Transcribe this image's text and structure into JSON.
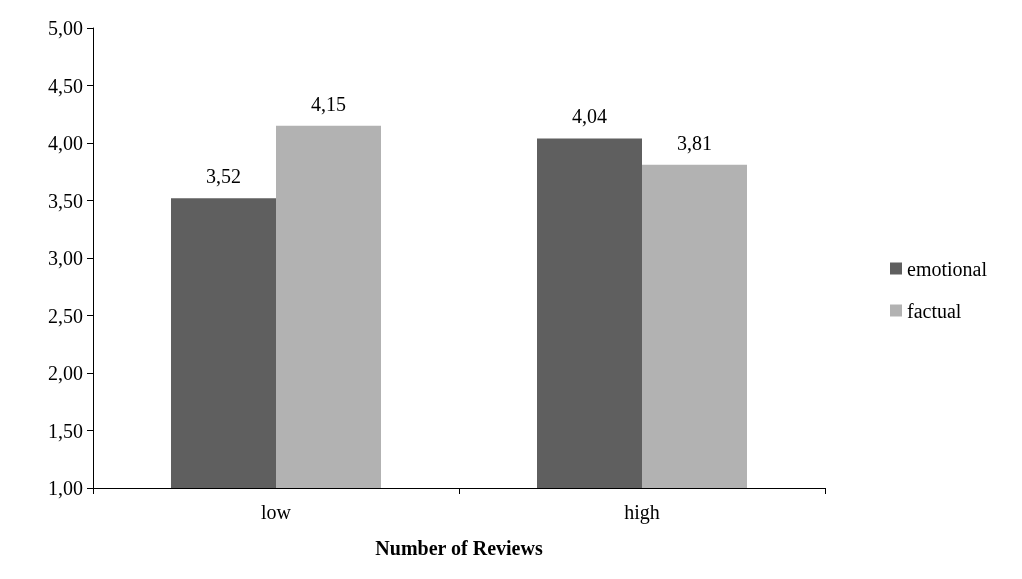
{
  "chart_data": {
    "type": "bar",
    "xlabel": "Number of Reviews",
    "categories": [
      "low",
      "high"
    ],
    "series": [
      {
        "name": "emotional",
        "color": "#5f5f5f",
        "values": [
          3.52,
          4.04
        ],
        "value_labels": [
          "3,52",
          "4,04"
        ]
      },
      {
        "name": "factual",
        "color": "#b2b2b2",
        "values": [
          4.15,
          3.81
        ],
        "value_labels": [
          "4,15",
          "3,81"
        ]
      }
    ],
    "ylim": [
      1,
      5
    ],
    "yticks": [
      {
        "value": 1,
        "label": "1,00"
      },
      {
        "value": 1.5,
        "label": "1,50"
      },
      {
        "value": 2,
        "label": "2,00"
      },
      {
        "value": 2.5,
        "label": "2,50"
      },
      {
        "value": 3,
        "label": "3,00"
      },
      {
        "value": 3.5,
        "label": "3,50"
      },
      {
        "value": 4,
        "label": "4,00"
      },
      {
        "value": 4.5,
        "label": "4,50"
      },
      {
        "value": 5,
        "label": "5,00"
      }
    ],
    "grid": false,
    "legend": "right"
  }
}
